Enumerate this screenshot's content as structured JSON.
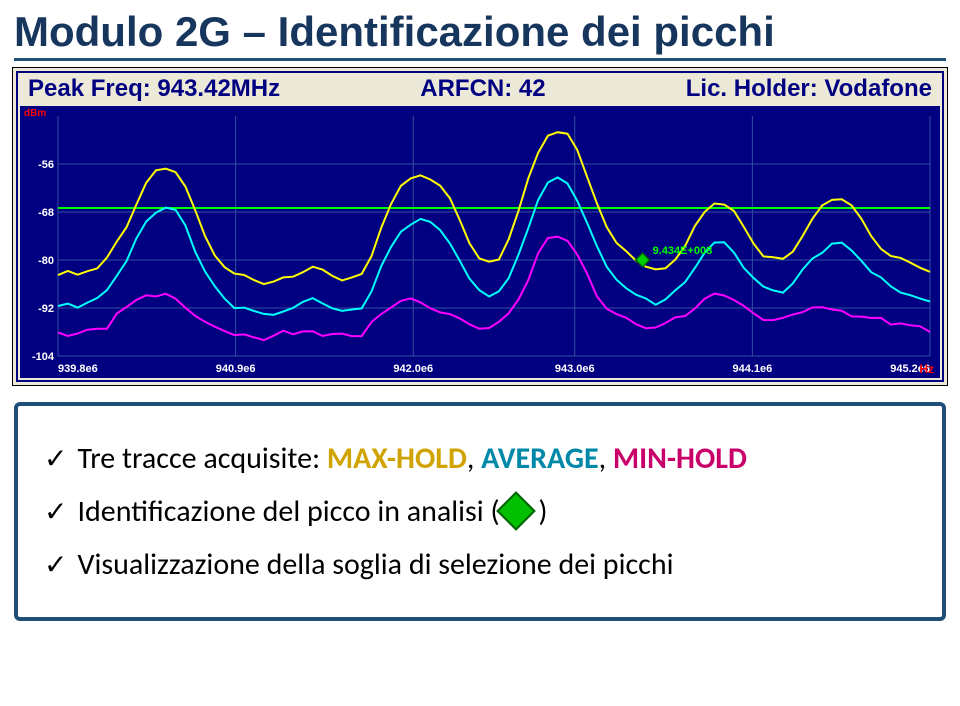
{
  "title": "Modulo 2G – Identificazione dei picchi",
  "chart": {
    "type": "line-spectrum",
    "info_bar": {
      "peak_label": "Peak Freq:",
      "peak_value": "943.42MHz",
      "arfcn_label": "ARFCN:",
      "arfcn_value": "42",
      "holder_label": "Lic. Holder:",
      "holder_value": "Vodafone",
      "text_color": "#000080",
      "fontsize": 24
    },
    "background_color": "#000080",
    "grid_color": "#3050a0",
    "marker": {
      "label": "9.434E+008",
      "label_color": "#00ff00",
      "x": 943.42,
      "shape": "diamond",
      "fill": "#00d000",
      "stroke": "#006000"
    },
    "threshold": {
      "y": -67,
      "color": "#00ff00",
      "width": 2
    },
    "x_axis": {
      "min": 939.8,
      "max": 945.2,
      "ticks": [
        939.8,
        940.9,
        942.0,
        943.0,
        944.1,
        945.2
      ],
      "tick_labels": [
        "939.8e6",
        "940.9e6",
        "942.0e6",
        "943.0e6",
        "944.1e6",
        "945.2e6"
      ],
      "tick_color": "#ffffff",
      "tick_fontsize": 11,
      "unit": "Hz",
      "unit_color": "#ff0000"
    },
    "y_axis": {
      "min": -104,
      "max": -44,
      "ticks": [
        -56,
        -68,
        -80,
        -92,
        -104
      ],
      "tick_labels": [
        "-56",
        "-68",
        "-80",
        "-92",
        "-104"
      ],
      "tick_color": "#ffffff",
      "tick_fontsize": 11,
      "unit": "dBm",
      "unit_color": "#ff0000"
    },
    "series": [
      {
        "name": "MAX-HOLD",
        "color": "#ffff00",
        "width": 2,
        "y": [
          -84,
          -83,
          -84,
          -83,
          -82,
          -80,
          -76,
          -72,
          -66,
          -61,
          -58,
          -57,
          -58,
          -62,
          -68,
          -74,
          -79,
          -82,
          -84,
          -84,
          -85,
          -86,
          -86,
          -85,
          -84,
          -83,
          -82,
          -83,
          -84,
          -85,
          -85,
          -84,
          -79,
          -72,
          -66,
          -62,
          -60,
          -59,
          -60,
          -62,
          -65,
          -70,
          -76,
          -80,
          -81,
          -80,
          -75,
          -68,
          -60,
          -53,
          -49,
          -48,
          -49,
          -53,
          -59,
          -66,
          -72,
          -76,
          -78,
          -80,
          -82,
          -83,
          -82,
          -80,
          -77,
          -72,
          -68,
          -66,
          -66,
          -68,
          -72,
          -76,
          -79,
          -80,
          -80,
          -78,
          -74,
          -70,
          -67,
          -65,
          -65,
          -67,
          -70,
          -74,
          -77,
          -79,
          -80,
          -81,
          -82,
          -83
        ]
      },
      {
        "name": "AVERAGE",
        "color": "#00ffff",
        "width": 2,
        "y": [
          -92,
          -91,
          -92,
          -91,
          -90,
          -88,
          -84,
          -80,
          -75,
          -71,
          -68,
          -67,
          -68,
          -72,
          -78,
          -83,
          -87,
          -90,
          -92,
          -92,
          -93,
          -94,
          -94,
          -93,
          -92,
          -91,
          -90,
          -91,
          -92,
          -93,
          -93,
          -92,
          -88,
          -82,
          -77,
          -73,
          -71,
          -70,
          -71,
          -73,
          -76,
          -80,
          -85,
          -88,
          -89,
          -88,
          -85,
          -79,
          -72,
          -65,
          -61,
          -60,
          -61,
          -65,
          -71,
          -77,
          -82,
          -85,
          -87,
          -89,
          -90,
          -91,
          -90,
          -88,
          -86,
          -82,
          -78,
          -76,
          -76,
          -78,
          -82,
          -85,
          -87,
          -88,
          -88,
          -86,
          -83,
          -80,
          -78,
          -76,
          -76,
          -78,
          -80,
          -83,
          -85,
          -87,
          -88,
          -89,
          -90,
          -91
        ]
      },
      {
        "name": "MIN-HOLD",
        "color": "#ff00ff",
        "width": 2,
        "y": [
          -98,
          -99,
          -99,
          -98,
          -97,
          -97,
          -94,
          -92,
          -90,
          -89,
          -89,
          -89,
          -90,
          -92,
          -94,
          -96,
          -97,
          -98,
          -99,
          -99,
          -100,
          -100,
          -99,
          -98,
          -99,
          -98,
          -98,
          -99,
          -99,
          -99,
          -99,
          -99,
          -96,
          -94,
          -92,
          -90,
          -90,
          -91,
          -92,
          -93,
          -94,
          -95,
          -96,
          -97,
          -97,
          -96,
          -94,
          -90,
          -85,
          -79,
          -75,
          -74,
          -75,
          -79,
          -84,
          -89,
          -92,
          -94,
          -95,
          -96,
          -97,
          -97,
          -96,
          -95,
          -94,
          -92,
          -90,
          -89,
          -89,
          -90,
          -92,
          -94,
          -95,
          -95,
          -95,
          -94,
          -93,
          -92,
          -92,
          -93,
          -93,
          -94,
          -94,
          -95,
          -95,
          -96,
          -96,
          -97,
          -97,
          -98
        ]
      }
    ]
  },
  "bullets": {
    "b1": {
      "prefix": "Tre tracce acquisite: ",
      "t1": "MAX-HOLD",
      "sep1": ", ",
      "t2": "AVERAGE",
      "sep2": ", ",
      "t3": "MIN-HOLD"
    },
    "b2": {
      "prefix": "Identificazione del picco in analisi (",
      "suffix": " )"
    },
    "b3": {
      "text": "Visualizzazione della soglia di selezione dei picchi"
    }
  }
}
